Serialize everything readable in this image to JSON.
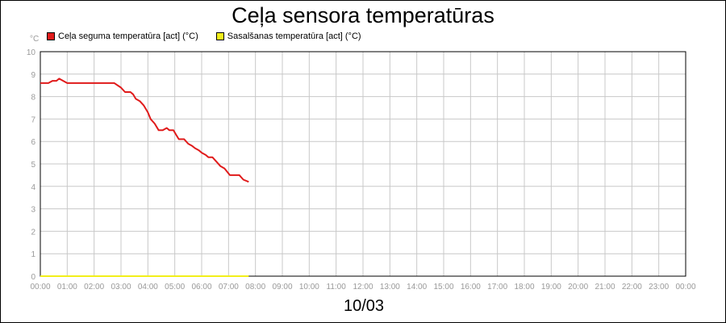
{
  "chart_data": {
    "type": "line",
    "title": "Ceļa sensora temperatūras",
    "y_unit": "°C",
    "x_caption": "10/03",
    "ylim": [
      0,
      10
    ],
    "y_ticks": [
      "0",
      "1",
      "2",
      "3",
      "4",
      "5",
      "6",
      "7",
      "8",
      "9",
      "10"
    ],
    "x_ticks": [
      "00:00",
      "01:00",
      "02:00",
      "03:00",
      "04:00",
      "05:00",
      "06:00",
      "07:00",
      "08:00",
      "09:00",
      "10:00",
      "11:00",
      "12:00",
      "13:00",
      "14:00",
      "15:00",
      "16:00",
      "17:00",
      "18:00",
      "19:00",
      "20:00",
      "21:00",
      "22:00",
      "23:00",
      "00:00"
    ],
    "xlim_hours": [
      0,
      24
    ],
    "grid": true,
    "legend_placement": "top-left",
    "series": [
      {
        "name": "Ceļa seguma temperatūra [act] (°C)",
        "color": "#e01b1b",
        "points": [
          [
            0.0,
            8.6
          ],
          [
            0.3,
            8.6
          ],
          [
            0.45,
            8.7
          ],
          [
            0.6,
            8.7
          ],
          [
            0.7,
            8.8
          ],
          [
            0.85,
            8.7
          ],
          [
            1.0,
            8.6
          ],
          [
            1.5,
            8.6
          ],
          [
            2.0,
            8.6
          ],
          [
            2.5,
            8.6
          ],
          [
            2.75,
            8.6
          ],
          [
            3.0,
            8.4
          ],
          [
            3.15,
            8.2
          ],
          [
            3.35,
            8.2
          ],
          [
            3.45,
            8.1
          ],
          [
            3.55,
            7.9
          ],
          [
            3.7,
            7.8
          ],
          [
            3.85,
            7.6
          ],
          [
            4.0,
            7.3
          ],
          [
            4.1,
            7.0
          ],
          [
            4.25,
            6.8
          ],
          [
            4.4,
            6.5
          ],
          [
            4.55,
            6.5
          ],
          [
            4.7,
            6.6
          ],
          [
            4.8,
            6.5
          ],
          [
            4.95,
            6.5
          ],
          [
            5.05,
            6.3
          ],
          [
            5.15,
            6.1
          ],
          [
            5.35,
            6.1
          ],
          [
            5.5,
            5.9
          ],
          [
            5.65,
            5.8
          ],
          [
            5.75,
            5.7
          ],
          [
            5.9,
            5.6
          ],
          [
            6.0,
            5.5
          ],
          [
            6.15,
            5.4
          ],
          [
            6.25,
            5.3
          ],
          [
            6.4,
            5.3
          ],
          [
            6.55,
            5.1
          ],
          [
            6.7,
            4.9
          ],
          [
            6.85,
            4.8
          ],
          [
            7.05,
            4.5
          ],
          [
            7.3,
            4.5
          ],
          [
            7.4,
            4.5
          ],
          [
            7.55,
            4.3
          ],
          [
            7.75,
            4.2
          ]
        ]
      },
      {
        "name": "Sasalšanas temperatūra [act] (°C)",
        "color": "#f2ef1a",
        "points": [
          [
            0.0,
            0.0
          ],
          [
            7.75,
            0.0
          ]
        ]
      }
    ]
  }
}
